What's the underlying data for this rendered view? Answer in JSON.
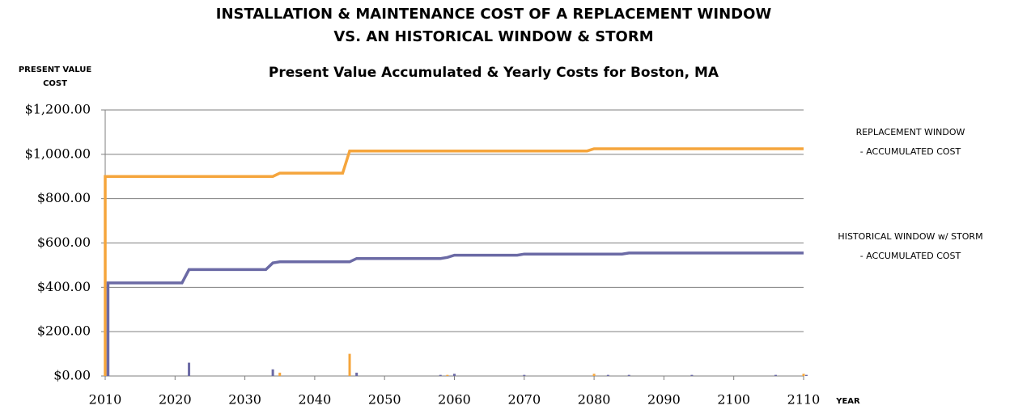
{
  "chart_data": {
    "type": "line",
    "title": [
      "INSTALLATION & MAINTENANCE COST OF A REPLACEMENT WINDOW",
      "VS. AN HISTORICAL WINDOW & STORM"
    ],
    "subtitle": "Present Value Accumulated & Yearly Costs for Boston, MA",
    "y_label": [
      "PRESENT VALUE",
      "COST"
    ],
    "x_label": "YEAR",
    "xlim": [
      2010,
      2110
    ],
    "xticks": [
      2010,
      2020,
      2030,
      2040,
      2050,
      2060,
      2070,
      2080,
      2090,
      2100,
      2110
    ],
    "ylim": [
      0,
      1200
    ],
    "yticks": [
      {
        "value": 0,
        "label": "$0.00"
      },
      {
        "value": 200,
        "label": "$200.00"
      },
      {
        "value": 400,
        "label": "$400.00"
      },
      {
        "value": 600,
        "label": "$600.00"
      },
      {
        "value": 800,
        "label": "$800.00"
      },
      {
        "value": 1000,
        "label": "$1,000.00"
      },
      {
        "value": 1200,
        "label": "$1,200.00"
      }
    ],
    "grid": true,
    "series": [
      {
        "type": "bar",
        "color": "#f5a53c",
        "x": [
          2010,
          2035,
          2045,
          2059,
          2080,
          2110
        ],
        "values": [
          900,
          15,
          100,
          5,
          10,
          10
        ]
      },
      {
        "type": "bar",
        "color": "#6b6aa5",
        "x": [
          2010.4,
          2022,
          2034,
          2046,
          2058,
          2060,
          2070,
          2082,
          2085,
          2094,
          2106,
          2110.4
        ],
        "values": [
          420,
          60,
          30,
          15,
          5,
          10,
          5,
          5,
          5,
          5,
          5,
          5
        ]
      },
      {
        "type": "line",
        "name": [
          "REPLACEMENT WINDOW",
          "- ACCUMULATED COST"
        ],
        "color": "#f5a53c",
        "x": [
          2010,
          2010,
          2034,
          2035,
          2044,
          2045,
          2079,
          2080,
          2110
        ],
        "values": [
          0,
          900,
          900,
          915,
          915,
          1015,
          1015,
          1025,
          1025
        ]
      },
      {
        "type": "line",
        "name": [
          "HISTORICAL WINDOW w/ STORM",
          "- ACCUMULATED COST"
        ],
        "color": "#6b6aa5",
        "x": [
          2010.4,
          2010.4,
          2021,
          2022,
          2033,
          2034,
          2035,
          2045,
          2046,
          2058,
          2059,
          2060,
          2069,
          2070,
          2084,
          2085,
          2110
        ],
        "values": [
          0,
          420,
          420,
          480,
          480,
          510,
          515,
          515,
          530,
          530,
          535,
          545,
          545,
          550,
          550,
          555,
          555
        ]
      }
    ]
  }
}
